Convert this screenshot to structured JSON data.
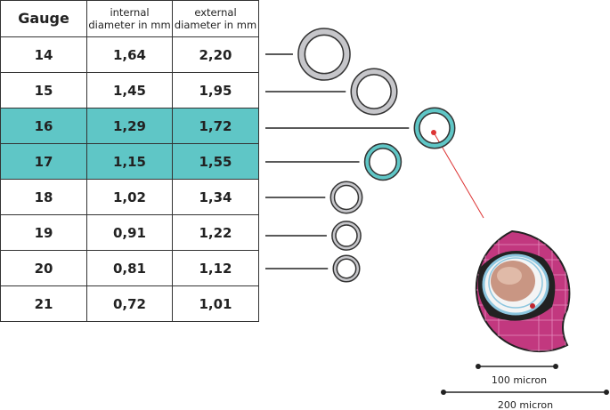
{
  "table": {
    "header": [
      "Gauge",
      "internal diameter in mm",
      "external diameter in mm"
    ],
    "rows": [
      [
        "14",
        "1,64",
        "2,20"
      ],
      [
        "15",
        "1,45",
        "1,95"
      ],
      [
        "16",
        "1,29",
        "1,72"
      ],
      [
        "17",
        "1,15",
        "1,55"
      ],
      [
        "18",
        "1,02",
        "1,34"
      ],
      [
        "19",
        "0,91",
        "1,22"
      ],
      [
        "20",
        "0,81",
        "1,12"
      ],
      [
        "21",
        "0,72",
        "1,01"
      ]
    ]
  },
  "scale_bars": [
    "100 micron",
    "200 micron"
  ]
}
